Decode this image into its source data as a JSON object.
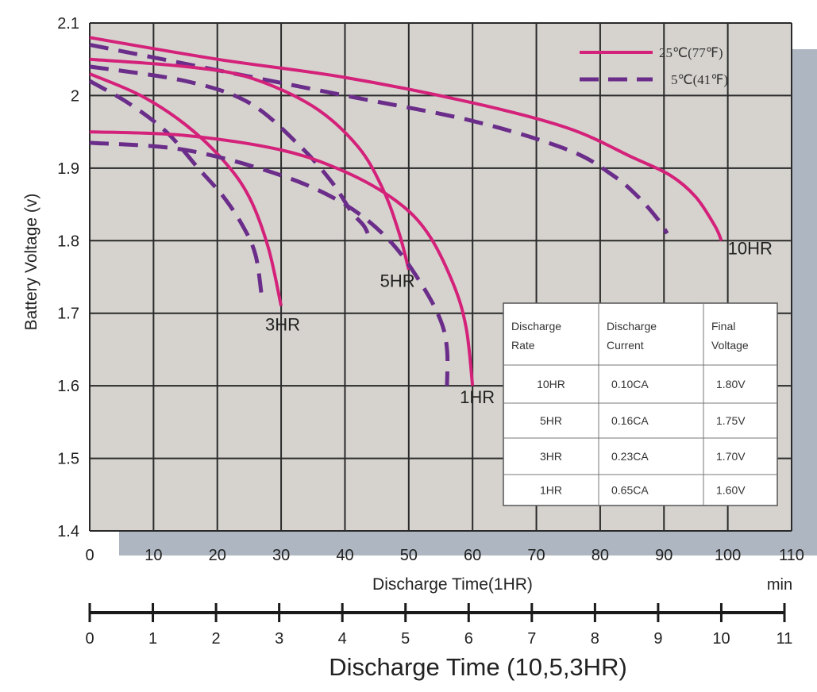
{
  "chart_data": {
    "type": "line",
    "ylabel": "Battery Voltage (v)",
    "xlabel": "Discharge Time(1HR)",
    "x_unit": "min",
    "xlabel_secondary": "Discharge Time (10,5,3HR)",
    "xlim": [
      0,
      110
    ],
    "ylim": [
      1.4,
      2.1
    ],
    "x_ticks": [
      "0",
      "10",
      "20",
      "30",
      "40",
      "50",
      "60",
      "70",
      "80",
      "90",
      "100",
      "110"
    ],
    "y_ticks": [
      "1.4",
      "1.5",
      "1.6",
      "1.7",
      "1.8",
      "1.9",
      "2",
      "2.1"
    ],
    "x2_ticks": [
      "0",
      "1",
      "2",
      "3",
      "4",
      "5",
      "6",
      "7",
      "8",
      "9",
      "10",
      "11"
    ],
    "grid": true,
    "legend": {
      "placement": "top-right",
      "entries": [
        {
          "label": "25℃(77℉)",
          "style": "solid"
        },
        {
          "label": "5℃(41℉)",
          "style": "dashed"
        }
      ]
    },
    "colors": {
      "solid": "#d4217a",
      "dashed": "#6b2d8a",
      "plot_bg": "#d6d3cf",
      "shadow": "#aeb7c1",
      "grid": "#2a2a2a"
    },
    "series": [
      {
        "curve": "10HR",
        "temp": "25℃",
        "style": "solid",
        "points": [
          [
            0,
            2.08
          ],
          [
            20,
            2.05
          ],
          [
            40,
            2.025
          ],
          [
            60,
            1.99
          ],
          [
            75,
            1.955
          ],
          [
            85,
            1.915
          ],
          [
            91,
            1.89
          ],
          [
            95,
            1.86
          ],
          [
            98,
            1.82
          ],
          [
            99,
            1.8
          ]
        ]
      },
      {
        "curve": "10HR",
        "temp": "5℃",
        "style": "dashed",
        "points": [
          [
            0,
            2.07
          ],
          [
            20,
            2.035
          ],
          [
            40,
            2.0
          ],
          [
            60,
            1.965
          ],
          [
            75,
            1.925
          ],
          [
            82,
            1.89
          ],
          [
            86,
            1.86
          ],
          [
            89,
            1.83
          ],
          [
            90.5,
            1.81
          ]
        ]
      },
      {
        "curve": "5HR",
        "temp": "25℃",
        "style": "solid",
        "points": [
          [
            0,
            2.05
          ],
          [
            15,
            2.04
          ],
          [
            25,
            2.025
          ],
          [
            35,
            1.985
          ],
          [
            42,
            1.93
          ],
          [
            46,
            1.87
          ],
          [
            48.5,
            1.81
          ],
          [
            50,
            1.76
          ]
        ]
      },
      {
        "curve": "5HR",
        "temp": "5℃",
        "style": "dashed",
        "points": [
          [
            0,
            2.04
          ],
          [
            15,
            2.02
          ],
          [
            25,
            1.99
          ],
          [
            33,
            1.93
          ],
          [
            38,
            1.88
          ],
          [
            41,
            1.84
          ],
          [
            43,
            1.82
          ],
          [
            44,
            1.8
          ]
        ]
      },
      {
        "curve": "3HR",
        "temp": "25℃",
        "style": "solid",
        "points": [
          [
            0,
            2.03
          ],
          [
            8,
            2.0
          ],
          [
            15,
            1.96
          ],
          [
            21,
            1.91
          ],
          [
            25,
            1.86
          ],
          [
            28,
            1.79
          ],
          [
            30,
            1.71
          ]
        ]
      },
      {
        "curve": "3HR",
        "temp": "5℃",
        "style": "dashed",
        "points": [
          [
            0,
            2.02
          ],
          [
            6,
            1.99
          ],
          [
            12,
            1.95
          ],
          [
            17,
            1.9
          ],
          [
            21,
            1.86
          ],
          [
            24,
            1.82
          ],
          [
            26,
            1.78
          ],
          [
            27,
            1.72
          ]
        ]
      },
      {
        "curve": "1HR",
        "temp": "25℃",
        "style": "solid",
        "points": [
          [
            0,
            1.95
          ],
          [
            15,
            1.945
          ],
          [
            30,
            1.925
          ],
          [
            40,
            1.895
          ],
          [
            48,
            1.855
          ],
          [
            53,
            1.81
          ],
          [
            57,
            1.74
          ],
          [
            59,
            1.68
          ],
          [
            60,
            1.6
          ]
        ]
      },
      {
        "curve": "1HR",
        "temp": "5℃",
        "style": "dashed",
        "points": [
          [
            0,
            1.935
          ],
          [
            15,
            1.925
          ],
          [
            30,
            1.89
          ],
          [
            40,
            1.85
          ],
          [
            47,
            1.8
          ],
          [
            52,
            1.74
          ],
          [
            55,
            1.69
          ],
          [
            56,
            1.65
          ],
          [
            56,
            1.6
          ]
        ]
      }
    ],
    "curve_labels": [
      {
        "text": "10HR",
        "x": 100,
        "y": 1.79
      },
      {
        "text": "5HR",
        "x": 45.5,
        "y": 1.745
      },
      {
        "text": "3HR",
        "x": 27.5,
        "y": 1.685
      },
      {
        "text": "1HR",
        "x": 58,
        "y": 1.585
      }
    ],
    "table": {
      "header": [
        "Discharge Rate",
        "Discharge Current",
        "Final Voltage"
      ],
      "rows": [
        [
          "10HR",
          "0.10CA",
          "1.80V"
        ],
        [
          "5HR",
          "0.16CA",
          "1.75V"
        ],
        [
          "3HR",
          "0.23CA",
          "1.70V"
        ],
        [
          "1HR",
          "0.65CA",
          "1.60V"
        ]
      ]
    }
  }
}
